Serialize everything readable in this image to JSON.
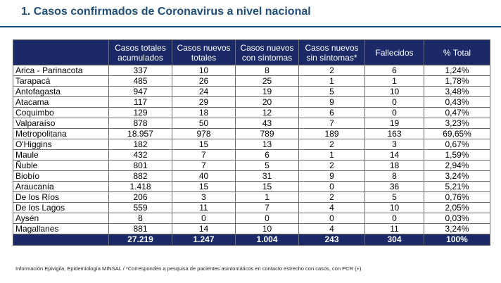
{
  "title": "1. Casos confirmados de Coronavirus a nivel nacional",
  "colors": {
    "header_bg": "#1b2a66",
    "title": "#1f4e79"
  },
  "table": {
    "headers": [
      "",
      "Casos totales acumulados",
      "Casos nuevos totales",
      "Casos nuevos con síntomas",
      "Casos nuevos sin síntomas*",
      "Fallecidos",
      "% Total"
    ],
    "rows": [
      [
        "Arica - Parinacota",
        "337",
        "10",
        "8",
        "2",
        "6",
        "1,24%"
      ],
      [
        "Tarapacá",
        "485",
        "26",
        "25",
        "1",
        "1",
        "1,78%"
      ],
      [
        "Antofagasta",
        "947",
        "24",
        "19",
        "5",
        "10",
        "3,48%"
      ],
      [
        "Atacama",
        "117",
        "29",
        "20",
        "9",
        "0",
        "0,43%"
      ],
      [
        "Coquimbo",
        "129",
        "18",
        "12",
        "6",
        "0",
        "0,47%"
      ],
      [
        "Valparaíso",
        "878",
        "50",
        "43",
        "7",
        "19",
        "3,23%"
      ],
      [
        "Metropolitana",
        "18.957",
        "978",
        "789",
        "189",
        "163",
        "69,65%"
      ],
      [
        "O'Higgins",
        "182",
        "15",
        "13",
        "2",
        "3",
        "0,67%"
      ],
      [
        "Maule",
        "432",
        "7",
        "6",
        "1",
        "14",
        "1,59%"
      ],
      [
        "Ñuble",
        "801",
        "7",
        "5",
        "2",
        "18",
        "2,94%"
      ],
      [
        "Biobío",
        "882",
        "40",
        "31",
        "9",
        "8",
        "3,24%"
      ],
      [
        "Araucanía",
        "1.418",
        "15",
        "15",
        "0",
        "36",
        "5,21%"
      ],
      [
        "De los Ríos",
        "206",
        "3",
        "1",
        "2",
        "5",
        "0,76%"
      ],
      [
        "De los Lagos",
        "559",
        "11",
        "7",
        "4",
        "10",
        "2,05%"
      ],
      [
        "Aysén",
        "8",
        "0",
        "0",
        "0",
        "0",
        "0,03%"
      ],
      [
        "Magallanes",
        "881",
        "14",
        "10",
        "4",
        "11",
        "3,24%"
      ]
    ],
    "totals": [
      "",
      "27.219",
      "1.247",
      "1.004",
      "243",
      "304",
      "100%"
    ]
  },
  "footnote": "Información Epivigila, Epidemiología MINSAL / *Corresponden a pesquisa de pacientes asintomáticos en contacto estrecho con casos, con PCR (+)"
}
